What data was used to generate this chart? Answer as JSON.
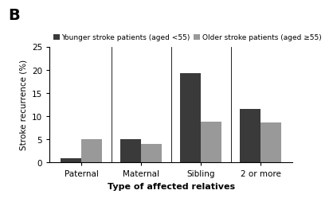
{
  "categories": [
    "Paternal",
    "Maternal",
    "Sibling",
    "2 or more"
  ],
  "younger_values": [
    1.0,
    5.1,
    19.3,
    11.5
  ],
  "older_values": [
    5.0,
    4.0,
    8.9,
    8.6
  ],
  "younger_color": "#3a3a3a",
  "older_color": "#999999",
  "younger_label": "Younger stroke patients (aged <55)",
  "older_label": "Older stroke patients (aged ≥55)",
  "ylabel": "Stroke recurrence (%)",
  "xlabel": "Type of affected relatives",
  "ylim": [
    0,
    25
  ],
  "yticks": [
    0,
    5,
    10,
    15,
    20,
    25
  ],
  "panel_label": "B",
  "bar_width": 0.35,
  "background_color": "#ffffff"
}
